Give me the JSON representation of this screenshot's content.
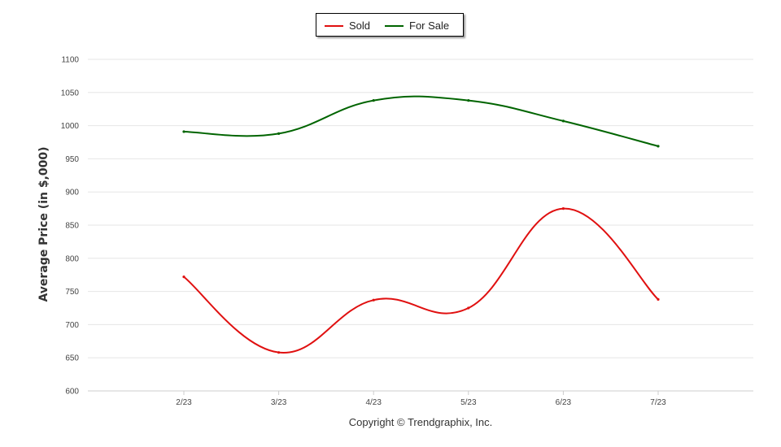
{
  "chart_data": {
    "type": "line",
    "categories": [
      "2/23",
      "3/23",
      "4/23",
      "5/23",
      "6/23",
      "7/23"
    ],
    "series": [
      {
        "name": "Sold",
        "color": "#e01010",
        "values": [
          772,
          658,
          737,
          725,
          875,
          738
        ]
      },
      {
        "name": "For Sale",
        "color": "#006400",
        "values": [
          991,
          988,
          1038,
          1038,
          1007,
          969
        ]
      }
    ],
    "ylabel": "Average Price (in $,000)",
    "ylim": [
      600,
      1100
    ],
    "yticks": [
      600,
      650,
      700,
      750,
      800,
      850,
      900,
      950,
      1000,
      1050,
      1100
    ],
    "grid": true,
    "legend": "top-center",
    "smooth": true
  },
  "footer": {
    "copyright": "Copyright © Trendgraphix, Inc."
  }
}
